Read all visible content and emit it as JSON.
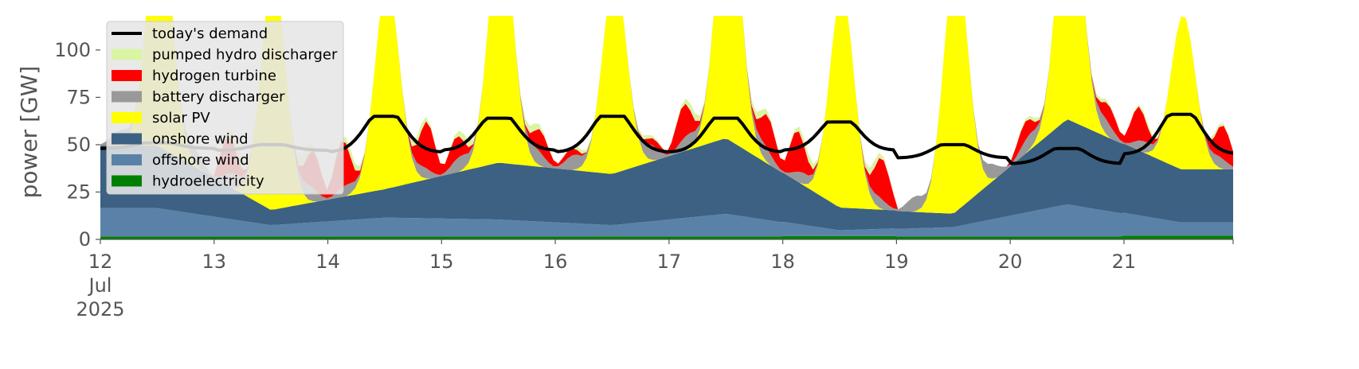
{
  "chart_data": {
    "type": "area",
    "title": "",
    "xlabel": "",
    "ylabel": "power [GW]",
    "x_ticks": [
      {
        "x": 0,
        "lines": [
          "12",
          "Jul",
          "2025"
        ]
      },
      {
        "x": 1,
        "lines": [
          "13"
        ]
      },
      {
        "x": 2,
        "lines": [
          "14"
        ]
      },
      {
        "x": 3,
        "lines": [
          "15"
        ]
      },
      {
        "x": 4,
        "lines": [
          "16"
        ]
      },
      {
        "x": 5,
        "lines": [
          "17"
        ]
      },
      {
        "x": 6,
        "lines": [
          "18"
        ]
      },
      {
        "x": 7,
        "lines": [
          "19"
        ]
      },
      {
        "x": 8,
        "lines": [
          "20"
        ]
      },
      {
        "x": 9,
        "lines": [
          "21"
        ]
      }
    ],
    "xlim": [
      0,
      9.96
    ],
    "y_ticks": [
      0,
      25,
      50,
      75,
      100
    ],
    "ylim": [
      0,
      118
    ],
    "x_unit": "days since 12 Jul 2025 00:00",
    "background": "#ffffff",
    "legend": {
      "position": "top-left",
      "entries": [
        {
          "label": "today's demand",
          "color": "#000000",
          "kind": "line"
        },
        {
          "label": "pumped hydro discharger",
          "color": "#d9f5a4",
          "kind": "patch"
        },
        {
          "label": "hydrogen turbine",
          "color": "#ff0000",
          "kind": "patch"
        },
        {
          "label": "battery discharger",
          "color": "#999999",
          "kind": "patch"
        },
        {
          "label": "solar PV",
          "color": "#ffff00",
          "kind": "patch"
        },
        {
          "label": "onshore wind",
          "color": "#3c6182",
          "kind": "patch"
        },
        {
          "label": "offshore wind",
          "color": "#5a82a8",
          "kind": "patch"
        },
        {
          "label": "hydroelectricity",
          "color": "#008000",
          "kind": "patch"
        }
      ]
    },
    "stack_order": [
      "hydroelectricity",
      "offshore wind",
      "onshore wind",
      "solar PV",
      "battery discharger",
      "hydrogen turbine",
      "pumped hydro discharger"
    ],
    "series": [
      {
        "name": "hydroelectricity",
        "color": "#008000",
        "daily": [
          1.5,
          1.5,
          1.5,
          1.5,
          1.5,
          1.5,
          1.8,
          1.5,
          1.5,
          2.0
        ]
      },
      {
        "name": "offshore wind",
        "color": "#5a82a8",
        "daily_wind": [
          15,
          6,
          10,
          9,
          6,
          12,
          3,
          5,
          17,
          7
        ]
      },
      {
        "name": "onshore wind",
        "color": "#3c6182",
        "daily_wind": [
          33,
          8,
          15,
          30,
          27,
          40,
          12,
          7,
          45,
          28
        ]
      },
      {
        "name": "solar PV",
        "color": "#ffff00",
        "daily_peak": [
          130,
          125,
          110,
          130,
          105,
          140,
          115,
          135,
          140,
          82
        ]
      },
      {
        "name": "battery discharger",
        "color": "#999999",
        "daily_evening": [
          8,
          8,
          6,
          8,
          8,
          8,
          6,
          8,
          8,
          6
        ]
      },
      {
        "name": "hydrogen turbine",
        "color": "#ff0000",
        "daily_evening": [
          0,
          20,
          25,
          12,
          4,
          18,
          22,
          0,
          10,
          18
        ]
      },
      {
        "name": "pumped hydro discharger",
        "color": "#d9f5a4",
        "daily_evening": [
          0,
          6,
          4,
          4,
          2,
          4,
          4,
          0,
          2,
          2
        ]
      },
      {
        "name": "today's demand",
        "color": "#000000",
        "daily_base": [
          48,
          47,
          46,
          47,
          46,
          46,
          47,
          43,
          40,
          45
        ],
        "daily_peak": [
          51,
          50,
          65,
          64,
          65,
          64,
          62,
          50,
          48,
          66
        ]
      }
    ]
  }
}
